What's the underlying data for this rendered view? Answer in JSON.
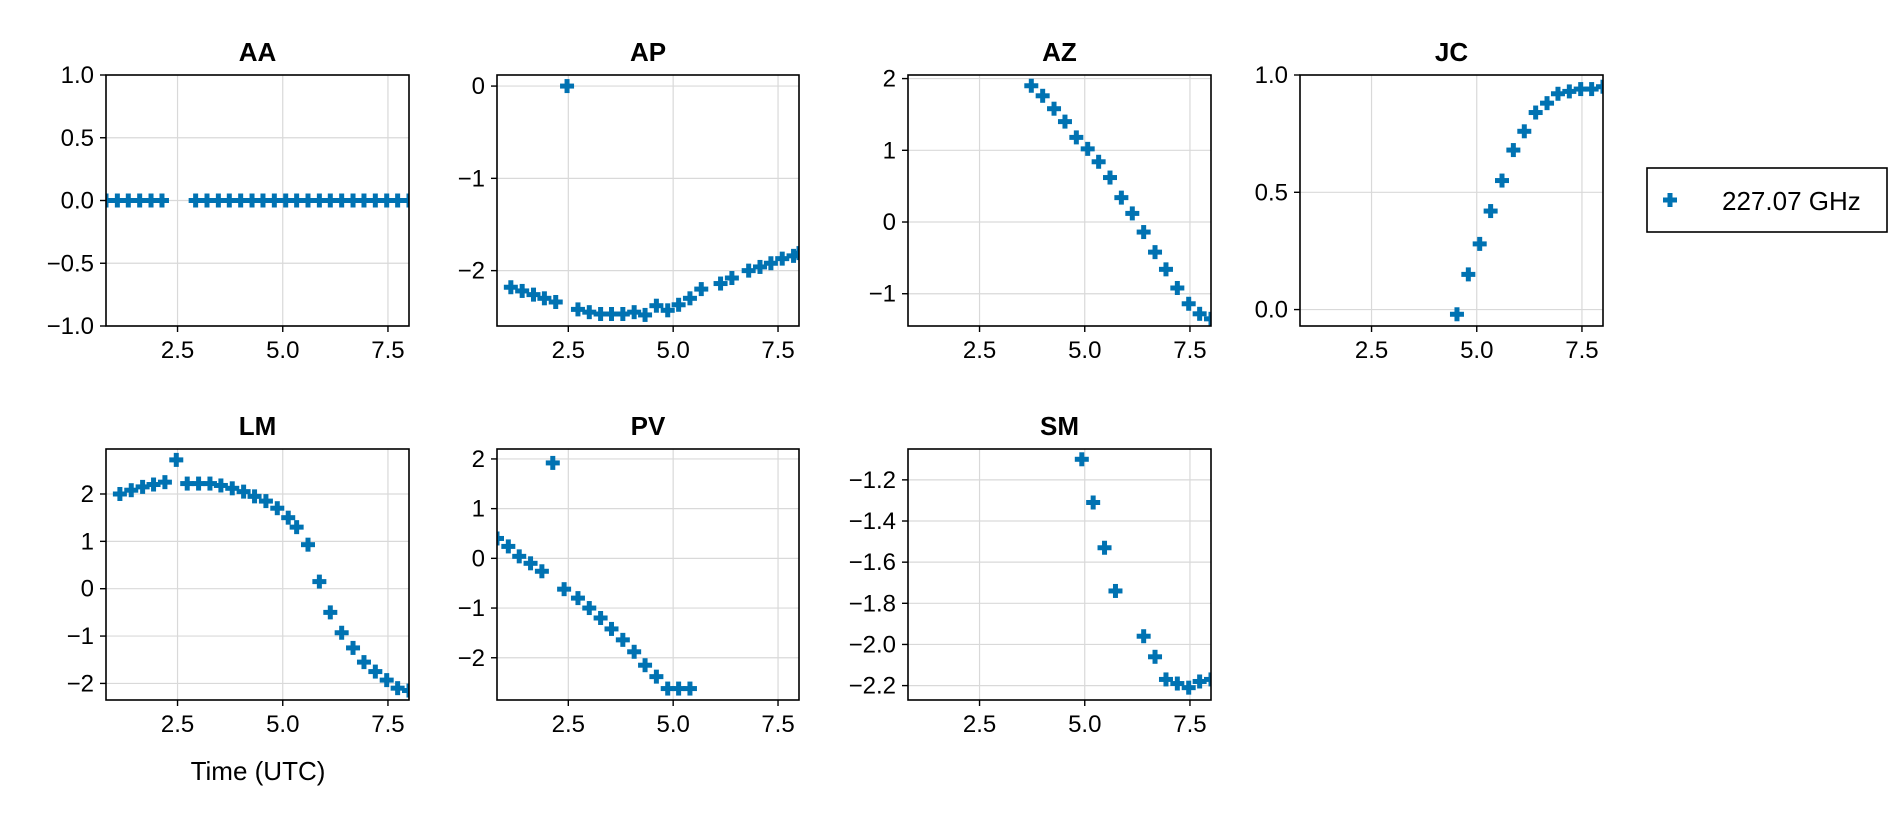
{
  "chart_data": {
    "type": "scatter",
    "marker": "cross",
    "color": "#0072b2",
    "legend": {
      "label": "227.07 GHz",
      "position": "right"
    },
    "xlabel": "Time (UTC)",
    "panels": [
      {
        "title": "AA",
        "xlim": [
          0.8,
          8.0
        ],
        "xticks": [
          "2.5",
          "5.0",
          "7.5"
        ],
        "xtick_values": [
          2.5,
          5.0,
          7.5
        ],
        "ylim": [
          -1.0,
          1.0
        ],
        "yticks": [
          "−1.0",
          "−0.5",
          "0.0",
          "0.5",
          "1.0"
        ],
        "ytick_values": [
          -1.0,
          -0.5,
          0.0,
          0.5,
          1.0
        ],
        "x": [
          0.8,
          1.07,
          1.33,
          1.6,
          1.87,
          2.13,
          2.93,
          3.2,
          3.47,
          3.73,
          4.0,
          4.27,
          4.53,
          4.8,
          5.07,
          5.33,
          5.6,
          5.87,
          6.13,
          6.4,
          6.67,
          6.93,
          7.2,
          7.47,
          7.73,
          8.0
        ],
        "y": [
          0,
          0,
          0,
          0,
          0,
          0,
          0,
          0,
          0,
          0,
          0,
          0,
          0,
          0,
          0,
          0,
          0,
          0,
          0,
          0,
          0,
          0,
          0,
          0,
          0,
          0
        ]
      },
      {
        "title": "AP",
        "xlim": [
          0.8,
          8.0
        ],
        "xticks": [
          "2.5",
          "5.0",
          "7.5"
        ],
        "xtick_values": [
          2.5,
          5.0,
          7.5
        ],
        "ylim": [
          -2.6,
          0.12
        ],
        "yticks": [
          "−2",
          "−1",
          "0"
        ],
        "ytick_values": [
          -2,
          -1,
          0
        ],
        "x": [
          1.13,
          1.4,
          1.67,
          1.93,
          2.2,
          2.47,
          2.73,
          3.0,
          3.27,
          3.53,
          3.8,
          4.07,
          4.33,
          4.6,
          4.87,
          5.13,
          5.4,
          5.67,
          6.13,
          6.4,
          6.8,
          7.07,
          7.33,
          7.6,
          7.87,
          8.0
        ],
        "y": [
          -2.18,
          -2.22,
          -2.26,
          -2.3,
          -2.34,
          0.0,
          -2.42,
          -2.45,
          -2.47,
          -2.47,
          -2.47,
          -2.45,
          -2.48,
          -2.38,
          -2.43,
          -2.37,
          -2.3,
          -2.2,
          -2.14,
          -2.08,
          -2.0,
          -1.96,
          -1.92,
          -1.87,
          -1.84,
          -1.81
        ]
      },
      {
        "title": "AZ",
        "xlim": [
          0.8,
          8.0
        ],
        "xticks": [
          "2.5",
          "5.0",
          "7.5"
        ],
        "xtick_values": [
          2.5,
          5.0,
          7.5
        ],
        "ylim": [
          -1.45,
          2.05
        ],
        "yticks": [
          "−1",
          "0",
          "1",
          "2"
        ],
        "ytick_values": [
          -1,
          0,
          1,
          2
        ],
        "x": [
          3.73,
          4.0,
          4.27,
          4.53,
          4.8,
          5.07,
          5.33,
          5.6,
          5.87,
          6.13,
          6.4,
          6.67,
          6.93,
          7.2,
          7.47,
          7.73,
          8.0
        ],
        "y": [
          1.9,
          1.76,
          1.58,
          1.4,
          1.18,
          1.02,
          0.84,
          0.62,
          0.34,
          0.12,
          -0.14,
          -0.42,
          -0.66,
          -0.92,
          -1.14,
          -1.28,
          -1.35
        ]
      },
      {
        "title": "JC",
        "xlim": [
          0.8,
          8.0
        ],
        "xticks": [
          "2.5",
          "5.0",
          "7.5"
        ],
        "xtick_values": [
          2.5,
          5.0,
          7.5
        ],
        "ylim": [
          -0.07,
          1.0
        ],
        "yticks": [
          "0.0",
          "0.5",
          "1.0"
        ],
        "ytick_values": [
          0.0,
          0.5,
          1.0
        ],
        "x": [
          4.53,
          4.8,
          5.07,
          5.33,
          5.6,
          5.87,
          6.13,
          6.4,
          6.67,
          6.93,
          7.2,
          7.47,
          7.73,
          8.0
        ],
        "y": [
          -0.02,
          0.15,
          0.28,
          0.42,
          0.55,
          0.68,
          0.76,
          0.84,
          0.88,
          0.92,
          0.93,
          0.94,
          0.94,
          0.95
        ]
      },
      {
        "title": "LM",
        "xlim": [
          0.8,
          8.0
        ],
        "xticks": [
          "2.5",
          "5.0",
          "7.5"
        ],
        "xtick_values": [
          2.5,
          5.0,
          7.5
        ],
        "ylim": [
          -2.35,
          2.95
        ],
        "yticks": [
          "−2",
          "−1",
          "0",
          "1",
          "2"
        ],
        "ytick_values": [
          -2,
          -1,
          0,
          1,
          2
        ],
        "x": [
          1.13,
          1.4,
          1.67,
          1.93,
          2.2,
          2.47,
          2.73,
          3.0,
          3.27,
          3.53,
          3.8,
          4.07,
          4.33,
          4.6,
          4.87,
          5.13,
          5.33,
          5.6,
          5.87,
          6.13,
          6.4,
          6.67,
          6.93,
          7.2,
          7.47,
          7.73,
          8.0
        ],
        "y": [
          2.0,
          2.08,
          2.15,
          2.2,
          2.25,
          2.72,
          2.22,
          2.22,
          2.22,
          2.18,
          2.12,
          2.05,
          1.95,
          1.85,
          1.7,
          1.5,
          1.3,
          0.93,
          0.15,
          -0.5,
          -0.93,
          -1.25,
          -1.55,
          -1.75,
          -1.93,
          -2.1,
          -2.15
        ]
      },
      {
        "title": "PV",
        "xlim": [
          0.8,
          8.0
        ],
        "xticks": [
          "2.5",
          "5.0",
          "7.5"
        ],
        "xtick_values": [
          2.5,
          5.0,
          7.5
        ],
        "ylim": [
          -2.85,
          2.2
        ],
        "yticks": [
          "−2",
          "−1",
          "0",
          "1",
          "2"
        ],
        "ytick_values": [
          -2,
          -1,
          0,
          1,
          2
        ],
        "x": [
          0.8,
          1.07,
          1.33,
          1.6,
          1.87,
          2.13,
          2.4,
          2.73,
          3.0,
          3.27,
          3.53,
          3.8,
          4.07,
          4.33,
          4.6,
          4.87,
          5.13,
          5.4
        ],
        "y": [
          0.4,
          0.24,
          0.04,
          -0.1,
          -0.26,
          1.92,
          -0.62,
          -0.8,
          -1.0,
          -1.2,
          -1.42,
          -1.64,
          -1.88,
          -2.15,
          -2.38,
          -2.62,
          -2.62,
          -2.62
        ]
      },
      {
        "title": "SM",
        "xlim": [
          0.8,
          8.0
        ],
        "xticks": [
          "2.5",
          "5.0",
          "7.5"
        ],
        "xtick_values": [
          2.5,
          5.0,
          7.5
        ],
        "ylim": [
          -2.27,
          -1.05
        ],
        "yticks": [
          "−2.2",
          "−2.0",
          "−1.8",
          "−1.6",
          "−1.4",
          "−1.2"
        ],
        "ytick_values": [
          -2.2,
          -2.0,
          -1.8,
          -1.6,
          -1.4,
          -1.2
        ],
        "x": [
          4.93,
          5.2,
          5.47,
          5.73,
          6.4,
          6.67,
          6.93,
          7.2,
          7.47,
          7.73,
          8.0
        ],
        "y": [
          -1.1,
          -1.31,
          -1.53,
          -1.74,
          -1.96,
          -2.06,
          -2.17,
          -2.19,
          -2.21,
          -2.18,
          -2.17
        ]
      }
    ]
  }
}
